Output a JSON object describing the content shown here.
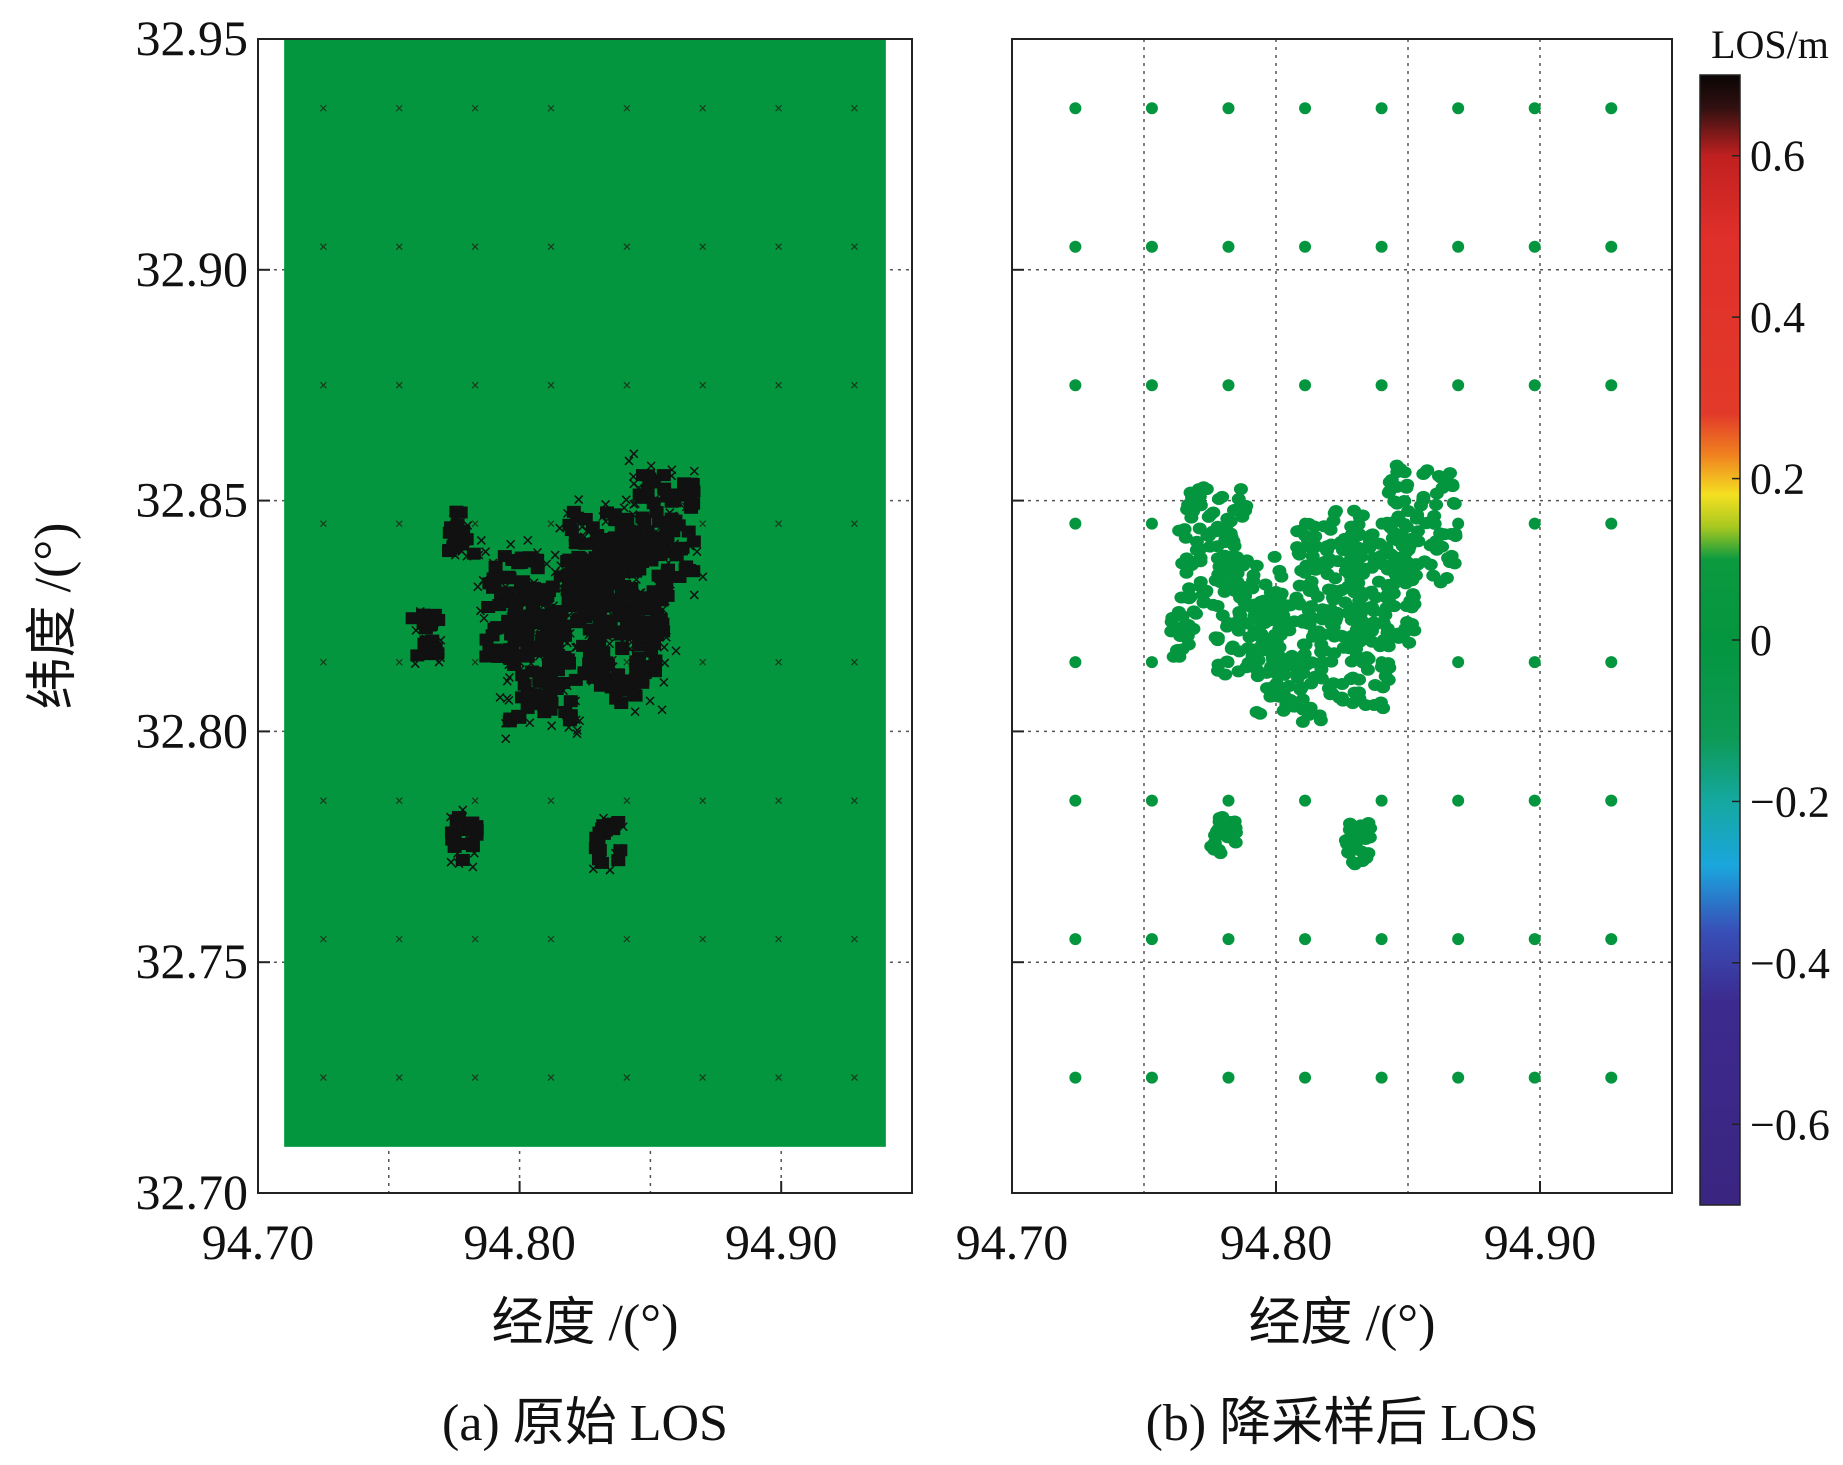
{
  "colors": {
    "field_green": "#04963f",
    "mark_black": "#111111",
    "grid": "#555555",
    "axis": "#222222"
  },
  "chart_data": [
    {
      "type": "heatmap",
      "panel": "a",
      "caption": "(a) 原始 LOS",
      "xlabel": "经度 /(°)",
      "ylabel": "纬度 /(°)",
      "xlim": [
        94.7,
        94.95
      ],
      "ylim": [
        32.7,
        32.95
      ],
      "x_ticks": [
        "94.70",
        "94.80",
        "94.90"
      ],
      "y_ticks": [
        "32.70",
        "32.75",
        "32.80",
        "32.85",
        "32.90",
        "32.95"
      ],
      "grid": true,
      "data_extent": {
        "lon": [
          94.71,
          94.94
        ],
        "lat": [
          32.71,
          32.95
        ],
        "value": 0
      },
      "regular_sample_lon": [
        94.725,
        94.754,
        94.783,
        94.812,
        94.841,
        94.87,
        94.899,
        94.928
      ],
      "regular_sample_lat": [
        32.935,
        32.905,
        32.875,
        32.845,
        32.815,
        32.785,
        32.755,
        32.725
      ],
      "dense_clusters": [
        {
          "lon": 94.83,
          "lat": 32.836,
          "value": 0.7
        },
        {
          "lon": 94.845,
          "lat": 32.832,
          "value": 0.7
        },
        {
          "lon": 94.822,
          "lat": 32.823,
          "value": 0.7
        },
        {
          "lon": 94.84,
          "lat": 32.818,
          "value": 0.7
        },
        {
          "lon": 94.808,
          "lat": 32.814,
          "value": 0.7
        },
        {
          "lon": 94.855,
          "lat": 32.845,
          "value": 0.7
        },
        {
          "lon": 94.799,
          "lat": 32.826,
          "value": 0.7
        },
        {
          "lon": 94.764,
          "lat": 32.821,
          "value": 0.7
        },
        {
          "lon": 94.779,
          "lat": 32.777,
          "value": 0.7
        },
        {
          "lon": 94.834,
          "lat": 32.776,
          "value": 0.7
        },
        {
          "lon": 94.778,
          "lat": 32.843,
          "value": 0.7
        }
      ]
    },
    {
      "type": "scatter",
      "panel": "b",
      "caption": "(b) 降采样后 LOS",
      "xlabel": "经度 /(°)",
      "ylabel": "",
      "xlim": [
        94.7,
        94.95
      ],
      "ylim": [
        32.7,
        32.95
      ],
      "x_ticks": [
        "94.70",
        "94.80",
        "94.90"
      ],
      "grid": true,
      "regular_sample_lon": [
        94.724,
        94.753,
        94.782,
        94.811,
        94.84,
        94.869,
        94.898,
        94.927
      ],
      "regular_sample_lat": [
        32.935,
        32.905,
        32.875,
        32.845,
        32.815,
        32.785,
        32.755,
        32.725
      ],
      "dense_clusters": [
        {
          "lon": 94.82,
          "lat": 32.835,
          "value": 0
        },
        {
          "lon": 94.84,
          "lat": 32.83,
          "value": 0
        },
        {
          "lon": 94.855,
          "lat": 32.845,
          "value": 0
        },
        {
          "lon": 94.805,
          "lat": 32.815,
          "value": 0
        },
        {
          "lon": 94.83,
          "lat": 32.818,
          "value": 0
        },
        {
          "lon": 94.79,
          "lat": 32.825,
          "value": 0
        },
        {
          "lon": 94.776,
          "lat": 32.84,
          "value": 0
        },
        {
          "lon": 94.78,
          "lat": 32.777,
          "value": 0
        },
        {
          "lon": 94.831,
          "lat": 32.776,
          "value": 0
        },
        {
          "lon": 94.765,
          "lat": 32.821,
          "value": 0
        }
      ]
    }
  ],
  "colorbar": {
    "label": "LOS/m",
    "range": [
      -0.7,
      0.7
    ],
    "ticks": [
      "0.6",
      "0.4",
      "0.2",
      "0",
      "−0.2",
      "−0.4",
      "−0.6"
    ],
    "tick_values": [
      0.6,
      0.4,
      0.2,
      0,
      -0.2,
      -0.4,
      -0.6
    ],
    "stops": [
      {
        "v": -0.7,
        "color": "#3a2680"
      },
      {
        "v": -0.45,
        "color": "#3c2a8e"
      },
      {
        "v": -0.36,
        "color": "#3850b8"
      },
      {
        "v": -0.28,
        "color": "#1aa6dd"
      },
      {
        "v": -0.2,
        "color": "#15a8a0"
      },
      {
        "v": -0.12,
        "color": "#0d9a55"
      },
      {
        "v": 0.0,
        "color": "#04963f"
      },
      {
        "v": 0.1,
        "color": "#0c9a3f"
      },
      {
        "v": 0.14,
        "color": "#a8c820"
      },
      {
        "v": 0.18,
        "color": "#f4e021"
      },
      {
        "v": 0.23,
        "color": "#f08020"
      },
      {
        "v": 0.28,
        "color": "#e23a2a"
      },
      {
        "v": 0.5,
        "color": "#e02f2a"
      },
      {
        "v": 0.6,
        "color": "#c02020"
      },
      {
        "v": 0.66,
        "color": "#301010"
      },
      {
        "v": 0.7,
        "color": "#0a0505"
      }
    ]
  }
}
